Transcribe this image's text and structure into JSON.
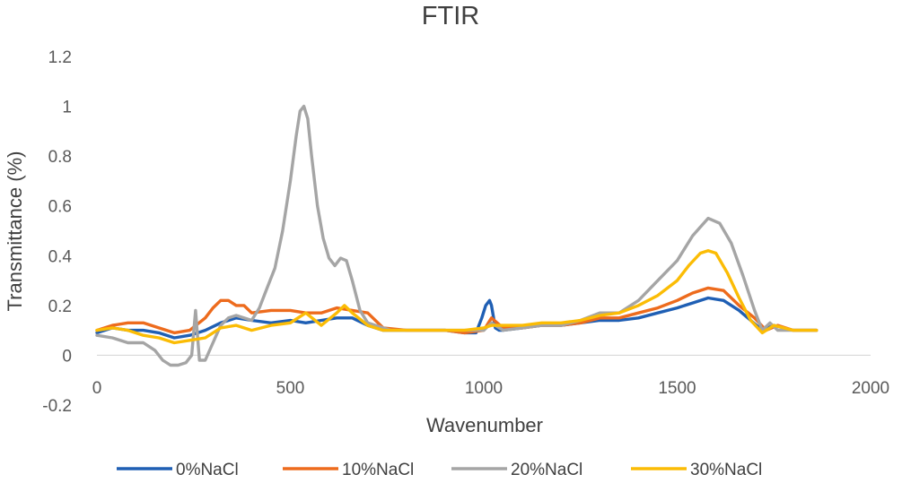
{
  "chart_data": {
    "type": "line",
    "title": "FTIR",
    "xlabel": "Wavenumber",
    "ylabel": "Transmittance (%)",
    "xlim": [
      0,
      2000
    ],
    "ylim": [
      -0.2,
      1.2
    ],
    "x_ticks": [
      "0",
      "500",
      "1000",
      "1500",
      "2000"
    ],
    "y_ticks": [
      "-0.2",
      "0",
      "0.2",
      "0.4",
      "0.6",
      "0.8",
      "1",
      "1.2"
    ],
    "grid": false,
    "legend_position": "bottom",
    "series": [
      {
        "name": "0%NaCl",
        "color": "#1f5fb4",
        "x": [
          0,
          40,
          80,
          120,
          160,
          200,
          240,
          280,
          320,
          360,
          400,
          450,
          500,
          540,
          580,
          620,
          660,
          700,
          740,
          800,
          850,
          900,
          950,
          980,
          995,
          1005,
          1015,
          1020,
          1030,
          1040,
          1050,
          1100,
          1150,
          1200,
          1250,
          1300,
          1350,
          1400,
          1450,
          1500,
          1540,
          1580,
          1620,
          1660,
          1690,
          1720,
          1750,
          1800,
          1860
        ],
        "y": [
          0.09,
          0.11,
          0.1,
          0.1,
          0.09,
          0.07,
          0.08,
          0.1,
          0.13,
          0.15,
          0.14,
          0.13,
          0.14,
          0.13,
          0.14,
          0.15,
          0.15,
          0.12,
          0.1,
          0.1,
          0.1,
          0.1,
          0.09,
          0.09,
          0.15,
          0.2,
          0.22,
          0.2,
          0.11,
          0.1,
          0.1,
          0.11,
          0.12,
          0.12,
          0.13,
          0.14,
          0.14,
          0.15,
          0.17,
          0.19,
          0.21,
          0.23,
          0.22,
          0.18,
          0.14,
          0.1,
          0.12,
          0.1,
          0.1
        ]
      },
      {
        "name": "10%NaCl",
        "color": "#ed6b1d",
        "x": [
          0,
          40,
          80,
          120,
          160,
          200,
          240,
          280,
          300,
          320,
          340,
          360,
          380,
          400,
          450,
          500,
          540,
          580,
          620,
          660,
          700,
          740,
          800,
          850,
          900,
          950,
          1000,
          1020,
          1050,
          1100,
          1150,
          1200,
          1250,
          1300,
          1350,
          1400,
          1450,
          1500,
          1540,
          1580,
          1620,
          1660,
          1700,
          1730,
          1760,
          1800,
          1860
        ],
        "y": [
          0.1,
          0.12,
          0.13,
          0.13,
          0.11,
          0.09,
          0.1,
          0.15,
          0.19,
          0.22,
          0.22,
          0.2,
          0.2,
          0.17,
          0.18,
          0.18,
          0.17,
          0.17,
          0.19,
          0.18,
          0.17,
          0.11,
          0.1,
          0.1,
          0.1,
          0.09,
          0.1,
          0.15,
          0.11,
          0.11,
          0.12,
          0.12,
          0.13,
          0.15,
          0.15,
          0.17,
          0.19,
          0.22,
          0.25,
          0.27,
          0.26,
          0.2,
          0.15,
          0.1,
          0.12,
          0.1,
          0.1
        ]
      },
      {
        "name": "20%NaCl",
        "color": "#a5a5a5",
        "x": [
          0,
          40,
          80,
          120,
          150,
          170,
          190,
          210,
          230,
          245,
          255,
          265,
          280,
          300,
          320,
          340,
          360,
          380,
          400,
          420,
          440,
          460,
          480,
          500,
          515,
          525,
          535,
          545,
          555,
          570,
          585,
          600,
          615,
          630,
          645,
          660,
          680,
          700,
          720,
          760,
          800,
          850,
          900,
          950,
          1000,
          1020,
          1050,
          1100,
          1150,
          1200,
          1250,
          1300,
          1350,
          1400,
          1450,
          1500,
          1540,
          1580,
          1610,
          1640,
          1670,
          1700,
          1720,
          1740,
          1760,
          1800,
          1860
        ],
        "y": [
          0.08,
          0.07,
          0.05,
          0.05,
          0.02,
          -0.02,
          -0.04,
          -0.04,
          -0.03,
          0.0,
          0.18,
          -0.02,
          -0.02,
          0.05,
          0.12,
          0.15,
          0.16,
          0.15,
          0.14,
          0.19,
          0.27,
          0.35,
          0.5,
          0.7,
          0.88,
          0.98,
          1.0,
          0.95,
          0.8,
          0.6,
          0.47,
          0.39,
          0.36,
          0.39,
          0.38,
          0.3,
          0.18,
          0.13,
          0.12,
          0.1,
          0.1,
          0.1,
          0.1,
          0.1,
          0.1,
          0.13,
          0.1,
          0.11,
          0.12,
          0.12,
          0.14,
          0.17,
          0.17,
          0.22,
          0.3,
          0.38,
          0.48,
          0.55,
          0.53,
          0.45,
          0.32,
          0.18,
          0.1,
          0.13,
          0.1,
          0.1,
          0.1
        ]
      },
      {
        "name": "30%NaCl",
        "color": "#fbbc05",
        "x": [
          0,
          40,
          80,
          120,
          160,
          200,
          240,
          280,
          320,
          360,
          400,
          450,
          500,
          540,
          580,
          620,
          640,
          660,
          700,
          740,
          800,
          850,
          900,
          950,
          1000,
          1020,
          1050,
          1100,
          1150,
          1200,
          1250,
          1300,
          1350,
          1400,
          1450,
          1500,
          1530,
          1560,
          1580,
          1600,
          1630,
          1660,
          1690,
          1720,
          1750,
          1800,
          1860
        ],
        "y": [
          0.1,
          0.11,
          0.1,
          0.08,
          0.07,
          0.05,
          0.06,
          0.07,
          0.11,
          0.12,
          0.1,
          0.12,
          0.13,
          0.17,
          0.12,
          0.17,
          0.2,
          0.17,
          0.12,
          0.1,
          0.1,
          0.1,
          0.1,
          0.1,
          0.11,
          0.12,
          0.12,
          0.12,
          0.13,
          0.13,
          0.14,
          0.16,
          0.17,
          0.2,
          0.24,
          0.3,
          0.36,
          0.41,
          0.42,
          0.41,
          0.33,
          0.23,
          0.14,
          0.09,
          0.12,
          0.1,
          0.1
        ]
      }
    ]
  }
}
